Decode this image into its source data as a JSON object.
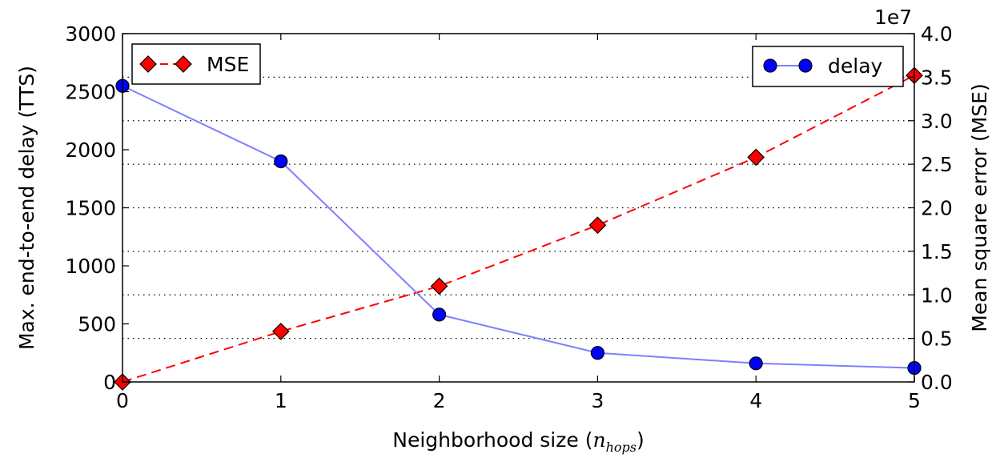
{
  "chart_data": {
    "type": "line",
    "x": [
      0,
      1,
      2,
      3,
      4,
      5
    ],
    "xlabel": "Neighborhood size (n_hops)",
    "xlabel_prefix": "Neighborhood size (",
    "xlabel_var": "n",
    "xlabel_sub": "hops",
    "xlabel_suffix": ")",
    "xlim": [
      0,
      5
    ],
    "xticks": [
      0,
      1,
      2,
      3,
      4,
      5
    ],
    "ylabel_left": "Max. end-to-end delay (TTS)",
    "ylim_left": [
      0,
      3000
    ],
    "yticks_left": [
      0,
      500,
      1000,
      1500,
      2000,
      2500,
      3000
    ],
    "ylabel_right": "Mean square error (MSE)",
    "ylim_right": [
      0,
      4.0
    ],
    "yticks_right": [
      "0.0",
      "0.5",
      "1.0",
      "1.5",
      "2.0",
      "2.5",
      "3.0",
      "3.5",
      "4.0"
    ],
    "right_scale_label": "1e7",
    "grid": "horizontal dotted, right axis",
    "series": [
      {
        "name": "delay",
        "axis": "left",
        "values": [
          2550,
          1900,
          580,
          250,
          160,
          120
        ],
        "color": "#0000ff",
        "line_color": "#7f7fff",
        "marker": "circle",
        "line_style": "solid",
        "legend_position": "top-right"
      },
      {
        "name": "MSE",
        "axis": "right",
        "values": [
          0.0,
          0.58,
          1.1,
          1.8,
          2.58,
          3.52
        ],
        "color": "#ff0000",
        "line_color": "#ff0000",
        "marker": "diamond",
        "line_style": "dashed",
        "legend_position": "top-left"
      }
    ]
  }
}
